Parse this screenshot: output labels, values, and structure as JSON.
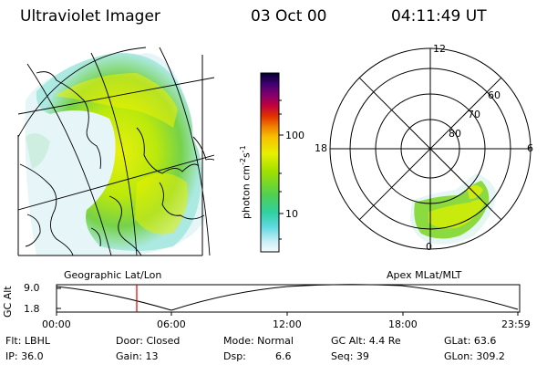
{
  "header": {
    "title": "Ultraviolet Imager",
    "date": "03 Oct 00",
    "time": "04:11:49 UT"
  },
  "colorbar": {
    "unit_main": "photon cm",
    "unit_sup1": "-2",
    "unit_s": "s",
    "unit_sup2": "-1",
    "tick_100": "100",
    "tick_10": "10",
    "colors": [
      "#000040",
      "#300070",
      "#600080",
      "#900060",
      "#c00020",
      "#e84000",
      "#f07800",
      "#f8b000",
      "#f0e000",
      "#c0f000",
      "#80e000",
      "#40d040",
      "#30d0a0",
      "#40c8e0",
      "#a0e0f0",
      "#e0f4fa"
    ]
  },
  "map_left": {
    "label": "Geographic Lat/Lon"
  },
  "polar": {
    "label": "Apex MLat/MLT",
    "mlt_12": "12",
    "mlt_18": "18",
    "mlt_6": "6",
    "mlt_0": "0",
    "lat_60": "60",
    "lat_70": "70",
    "lat_80": "80"
  },
  "timeline": {
    "ylabel": "GC Alt",
    "ytick_top": "9.0",
    "ytick_bottom": "1.8",
    "xticks": [
      "00:00",
      "06:00",
      "12:00",
      "18:00",
      "23:59"
    ],
    "current_time_marker": "04:11:49"
  },
  "info": {
    "flt": "Flt: LBHL",
    "ip": "IP: 36.0",
    "door": "Door: Closed",
    "gain": "Gain: 13",
    "mode": "Mode: Normal",
    "dsp_label": "Dsp:",
    "dsp_value": "6.6",
    "gc_alt": "GC Alt: 4.4 Re",
    "seq": "Seq: 39",
    "glat": "GLat:  63.6",
    "glon": "GLon: 309.2"
  }
}
